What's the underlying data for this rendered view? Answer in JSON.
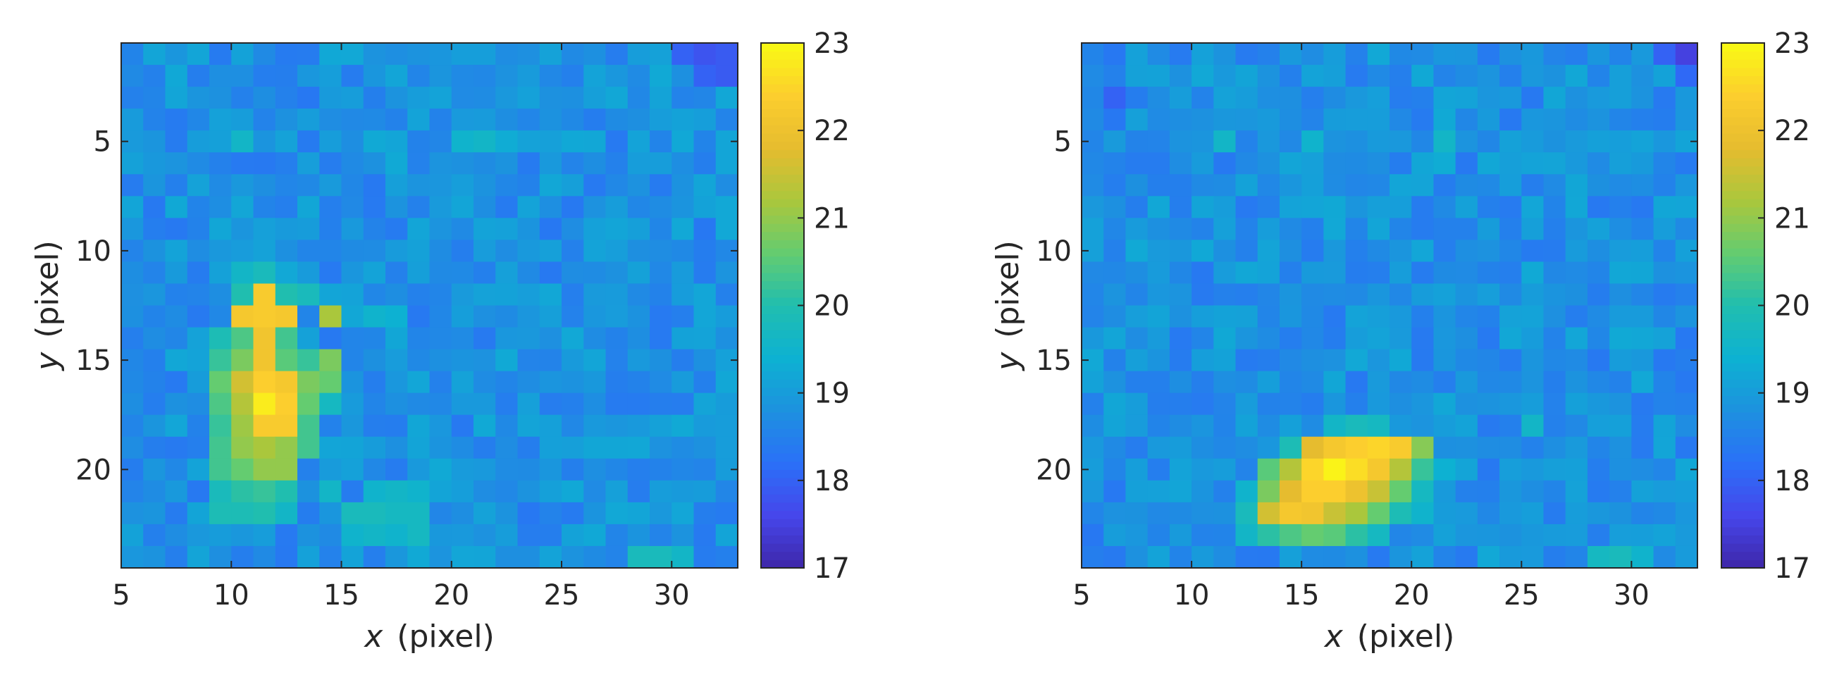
{
  "chart_data": [
    {
      "type": "heatmap",
      "title": "",
      "xlabel_var": "x",
      "xlabel_unit": "(pixel)",
      "ylabel_var": "y",
      "ylabel_unit": "(pixel)",
      "xlim": [
        5,
        32
      ],
      "ylim": [
        1,
        24
      ],
      "y_reversed": true,
      "xticks": [
        5,
        10,
        15,
        20,
        25,
        30
      ],
      "yticks": [
        5,
        10,
        15,
        20
      ],
      "colorbar": {
        "min": 17,
        "max": 23,
        "ticks": [
          17,
          18,
          19,
          20,
          21,
          22,
          23
        ],
        "colormap": "parula"
      },
      "background_level": 18.8,
      "hot_cells": [
        [
          11,
          12,
          22.3
        ],
        [
          11,
          13,
          22.3
        ],
        [
          10,
          13,
          22.2
        ],
        [
          12,
          13,
          22.2
        ],
        [
          11,
          14,
          22.1
        ],
        [
          11,
          15,
          22.1
        ],
        [
          10,
          15,
          20.8
        ],
        [
          12,
          15,
          20.5
        ],
        [
          11,
          16,
          22.4
        ],
        [
          10,
          16,
          21.6
        ],
        [
          12,
          16,
          22.2
        ],
        [
          11,
          17,
          22.8
        ],
        [
          10,
          17,
          21.3
        ],
        [
          12,
          17,
          22.4
        ],
        [
          11,
          18,
          22.3
        ],
        [
          12,
          18,
          22.3
        ],
        [
          10,
          18,
          21.1
        ],
        [
          10,
          19,
          21.0
        ],
        [
          11,
          19,
          21.2
        ],
        [
          12,
          19,
          21.0
        ],
        [
          10,
          20,
          20.6
        ],
        [
          11,
          20,
          21.0
        ],
        [
          12,
          20,
          21.0
        ],
        [
          9,
          16,
          20.6
        ],
        [
          9,
          17,
          20.4
        ],
        [
          9,
          18,
          20.2
        ],
        [
          9,
          19,
          20.3
        ],
        [
          9,
          20,
          20.3
        ],
        [
          9,
          15,
          20.2
        ],
        [
          9,
          14,
          19.9
        ],
        [
          10,
          14,
          20.4
        ],
        [
          12,
          14,
          20.3
        ],
        [
          10,
          12,
          20.0
        ],
        [
          12,
          12,
          20.0
        ],
        [
          13,
          12,
          19.8
        ],
        [
          10,
          11,
          19.6
        ],
        [
          11,
          11,
          19.8
        ],
        [
          13,
          15,
          20.2
        ],
        [
          13,
          16,
          20.8
        ],
        [
          13,
          17,
          20.6
        ],
        [
          13,
          18,
          20.3
        ],
        [
          13,
          19,
          20.3
        ],
        [
          14,
          13,
          21.2
        ],
        [
          14,
          15,
          20.8
        ],
        [
          14,
          16,
          20.6
        ],
        [
          14,
          17,
          19.7
        ],
        [
          10,
          21,
          20.1
        ],
        [
          11,
          21,
          20.2
        ],
        [
          12,
          21,
          20.0
        ],
        [
          9,
          21,
          19.8
        ],
        [
          9,
          22,
          19.9
        ],
        [
          10,
          22,
          19.9
        ],
        [
          11,
          22,
          20.0
        ],
        [
          12,
          22,
          19.6
        ],
        [
          15,
          22,
          19.8
        ],
        [
          16,
          22,
          19.8
        ],
        [
          17,
          22,
          19.7
        ],
        [
          18,
          22,
          19.7
        ],
        [
          14,
          21,
          19.6
        ],
        [
          16,
          21,
          19.5
        ],
        [
          17,
          21,
          19.6
        ],
        [
          18,
          21,
          19.5
        ],
        [
          15,
          23,
          19.5
        ],
        [
          16,
          23,
          19.6
        ],
        [
          17,
          23,
          19.5
        ],
        [
          18,
          23,
          19.7
        ],
        [
          28,
          24,
          19.8
        ],
        [
          29,
          24,
          19.8
        ],
        [
          30,
          24,
          19.6
        ],
        [
          20,
          5,
          19.5
        ],
        [
          21,
          5,
          19.6
        ],
        [
          22,
          5,
          19.3
        ],
        [
          10,
          5,
          19.6
        ],
        [
          16,
          13,
          19.5
        ],
        [
          17,
          13,
          19.4
        ],
        [
          31,
          1,
          17.8
        ],
        [
          32,
          1,
          17.9
        ],
        [
          31,
          2,
          18.0
        ],
        [
          32,
          2,
          17.9
        ],
        [
          30,
          1,
          18.0
        ]
      ]
    },
    {
      "type": "heatmap",
      "title": "",
      "xlabel_var": "x",
      "xlabel_unit": "(pixel)",
      "ylabel_var": "y",
      "ylabel_unit": "(pixel)",
      "xlim": [
        5,
        32
      ],
      "ylim": [
        1,
        24
      ],
      "y_reversed": true,
      "xticks": [
        5,
        10,
        15,
        20,
        25,
        30
      ],
      "yticks": [
        5,
        10,
        15,
        20
      ],
      "colorbar": {
        "min": 17,
        "max": 23,
        "ticks": [
          17,
          18,
          19,
          20,
          21,
          22,
          23
        ],
        "colormap": "parula"
      },
      "background_level": 18.8,
      "hot_cells": [
        [
          15,
          19,
          21.8
        ],
        [
          16,
          19,
          22.2
        ],
        [
          17,
          19,
          22.4
        ],
        [
          18,
          19,
          22.5
        ],
        [
          19,
          19,
          22.3
        ],
        [
          14,
          20,
          21.3
        ],
        [
          15,
          20,
          22.5
        ],
        [
          16,
          20,
          22.9
        ],
        [
          17,
          20,
          22.6
        ],
        [
          18,
          20,
          22.2
        ],
        [
          19,
          20,
          21.3
        ],
        [
          14,
          21,
          21.8
        ],
        [
          15,
          21,
          22.4
        ],
        [
          16,
          21,
          22.4
        ],
        [
          17,
          21,
          22.0
        ],
        [
          18,
          21,
          21.5
        ],
        [
          19,
          21,
          20.6
        ],
        [
          13,
          22,
          21.6
        ],
        [
          14,
          22,
          22.2
        ],
        [
          15,
          22,
          22.1
        ],
        [
          16,
          22,
          21.5
        ],
        [
          17,
          22,
          21.2
        ],
        [
          18,
          22,
          20.6
        ],
        [
          13,
          20,
          20.5
        ],
        [
          13,
          21,
          20.8
        ],
        [
          20,
          19,
          20.9
        ],
        [
          20,
          20,
          20.2
        ],
        [
          20,
          21,
          19.7
        ],
        [
          19,
          22,
          19.9
        ],
        [
          14,
          19,
          19.9
        ],
        [
          13,
          23,
          20.1
        ],
        [
          14,
          23,
          20.4
        ],
        [
          15,
          23,
          20.6
        ],
        [
          16,
          23,
          20.5
        ],
        [
          17,
          23,
          20.1
        ],
        [
          12,
          22,
          19.8
        ],
        [
          12,
          23,
          19.6
        ],
        [
          18,
          23,
          19.7
        ],
        [
          16,
          18,
          19.6
        ],
        [
          17,
          18,
          19.8
        ],
        [
          18,
          18,
          19.7
        ],
        [
          20,
          22,
          19.5
        ],
        [
          12,
          21,
          19.5
        ],
        [
          21,
          20,
          19.4
        ],
        [
          25,
          18,
          19.6
        ],
        [
          28,
          24,
          19.7
        ],
        [
          29,
          24,
          19.8
        ],
        [
          30,
          24,
          19.5
        ],
        [
          11,
          5,
          19.6
        ],
        [
          15,
          5,
          19.5
        ],
        [
          21,
          5,
          19.6
        ],
        [
          21,
          6,
          19.3
        ],
        [
          32,
          1,
          17.5
        ],
        [
          31,
          1,
          18.0
        ],
        [
          6,
          3,
          18.0
        ],
        [
          32,
          2,
          18.1
        ]
      ]
    }
  ]
}
